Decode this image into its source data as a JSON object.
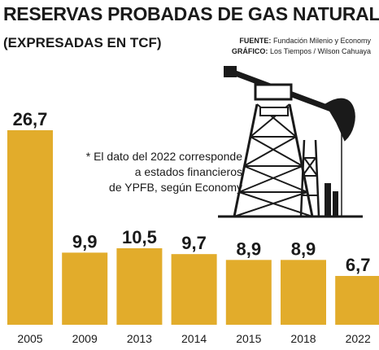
{
  "chart_data": {
    "type": "bar",
    "title": "RESERVAS PROBADAS DE GAS NATURAL",
    "subtitle": "(EXPRESADAS EN TCF)",
    "categories": [
      "2005",
      "2009",
      "2013",
      "2014",
      "2015",
      "2018",
      "2022"
    ],
    "values": [
      26.7,
      9.9,
      10.5,
      9.7,
      8.9,
      8.9,
      6.7
    ],
    "value_labels": [
      "26,7",
      "9,9",
      "10,5",
      "9,7",
      "8,9",
      "8,9",
      "6,7"
    ],
    "bar_color": "#e2ac2b",
    "ylim": [
      0,
      26.7
    ],
    "xlabel": "",
    "ylabel": "",
    "grid": false,
    "annotation": [
      "* El dato del 2022 corresponde",
      "a estados financieros",
      "de YPFB, según Economy"
    ]
  },
  "credits": {
    "source_label": "FUENTE:",
    "source": "Fundación Milenio y Economy",
    "graphic_label": "GRÁFICO:",
    "graphic": "Los Tiempos / Wilson Cahuaya"
  },
  "illustration": {
    "icon": "oil-pumpjack-derrick-icon"
  }
}
